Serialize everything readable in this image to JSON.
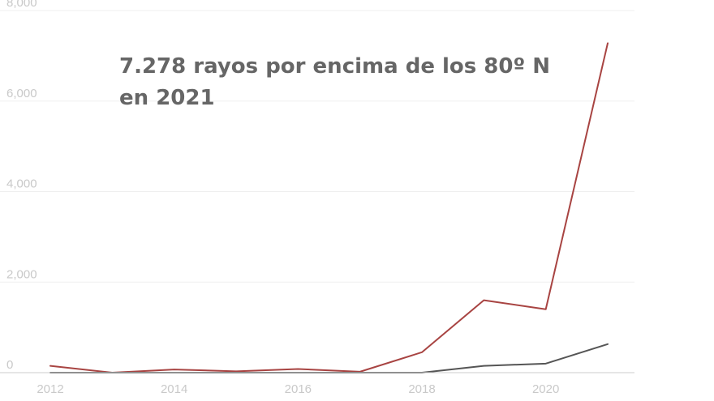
{
  "chart_data": {
    "type": "line",
    "title": "",
    "xlabel": "",
    "ylabel": "",
    "x": [
      2012,
      2013,
      2014,
      2015,
      2016,
      2017,
      2018,
      2019,
      2020,
      2021
    ],
    "x_ticks": [
      "2012",
      "2014",
      "2016",
      "2018",
      "2020"
    ],
    "y_ticks": [
      "0",
      "2,000",
      "4,000",
      "6,000",
      "8,000"
    ],
    "xlim": [
      2012,
      2021
    ],
    "ylim": [
      0,
      8000
    ],
    "grid": true,
    "annotation": [
      "7.278 rayos por encima de los 80º N",
      "en 2021"
    ],
    "series": [
      {
        "color": "#a84442",
        "values": [
          150,
          0,
          70,
          30,
          80,
          20,
          450,
          1600,
          1400,
          7278
        ]
      },
      {
        "color": "#555555",
        "values": [
          0,
          0,
          0,
          0,
          0,
          0,
          0,
          150,
          200,
          630
        ]
      }
    ]
  }
}
